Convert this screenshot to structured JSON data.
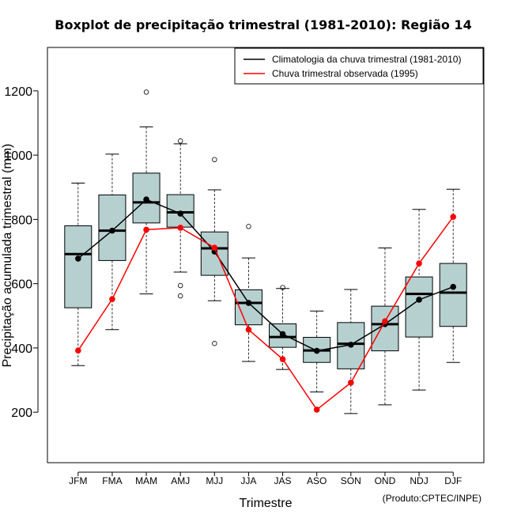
{
  "chart_data": {
    "type": "boxplot",
    "title": "Boxplot de precipitação trimestral (1981-2010): Região 14",
    "xlabel": "Trimestre",
    "ylabel": "Precipitação acumulada trimestral (mm)",
    "credit": "(Produto:CPTEC/INPE)",
    "ylim": [
      43,
      1335
    ],
    "yticks": [
      200,
      400,
      600,
      800,
      1000,
      1200
    ],
    "categories": [
      "JFM",
      "FMA",
      "MAM",
      "AMJ",
      "MJJ",
      "JJA",
      "JAS",
      "ASO",
      "SON",
      "OND",
      "NDJ",
      "DJF"
    ],
    "boxes": [
      {
        "min": 345,
        "q1": 525,
        "median": 692,
        "q3": 780,
        "max": 913,
        "outliers": []
      },
      {
        "min": 457,
        "q1": 672,
        "median": 765,
        "q3": 876,
        "max": 1003,
        "outliers": []
      },
      {
        "min": 568,
        "q1": 789,
        "median": 853,
        "q3": 944,
        "max": 1088,
        "outliers": [
          1196
        ]
      },
      {
        "min": 636,
        "q1": 776,
        "median": 822,
        "q3": 877,
        "max": 1035,
        "outliers": [
          1044,
          594,
          562
        ]
      },
      {
        "min": 547,
        "q1": 626,
        "median": 710,
        "q3": 761,
        "max": 892,
        "outliers": [
          986,
          414
        ]
      },
      {
        "min": 358,
        "q1": 472,
        "median": 540,
        "q3": 581,
        "max": 680,
        "outliers": [
          778
        ]
      },
      {
        "min": 333,
        "q1": 402,
        "median": 434,
        "q3": 475,
        "max": 585,
        "outliers": [
          588
        ]
      },
      {
        "min": 263,
        "q1": 355,
        "median": 392,
        "q3": 433,
        "max": 515,
        "outliers": []
      },
      {
        "min": 196,
        "q1": 335,
        "median": 413,
        "q3": 479,
        "max": 582,
        "outliers": []
      },
      {
        "min": 223,
        "q1": 391,
        "median": 474,
        "q3": 530,
        "max": 711,
        "outliers": []
      },
      {
        "min": 269,
        "q1": 434,
        "median": 568,
        "q3": 621,
        "max": 831,
        "outliers": []
      },
      {
        "min": 355,
        "q1": 467,
        "median": 572,
        "q3": 663,
        "max": 894,
        "outliers": []
      }
    ],
    "series": [
      {
        "name": "Climatologia da chuva trimestral (1981-2010)",
        "color": "#000000",
        "values": [
          678,
          765,
          862,
          818,
          700,
          540,
          443,
          391,
          410,
          474,
          550,
          590
        ]
      },
      {
        "name": "Chuva trimestral observada (1995)",
        "color": "#ff0000",
        "values": [
          392,
          552,
          768,
          774,
          712,
          457,
          365,
          208,
          292,
          483,
          663,
          808
        ]
      }
    ],
    "box_color": "#b6d0d0",
    "legend_position": "top-right"
  }
}
